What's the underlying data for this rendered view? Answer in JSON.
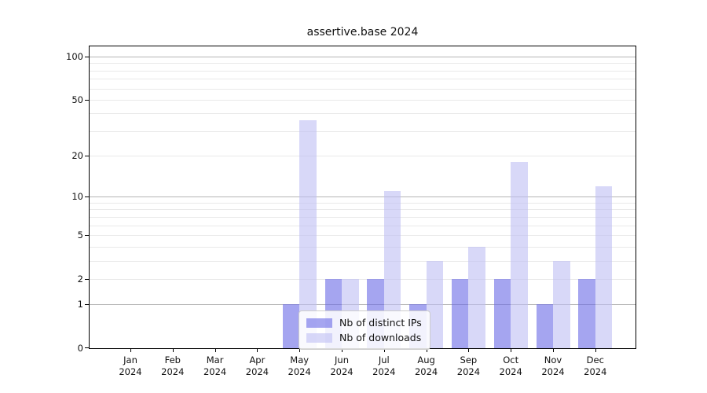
{
  "title": "assertive.base 2024",
  "chart_data": {
    "type": "bar",
    "title": "assertive.base 2024",
    "categories": [
      "Jan",
      "Feb",
      "Mar",
      "Apr",
      "May",
      "Jun",
      "Jul",
      "Aug",
      "Sep",
      "Oct",
      "Nov",
      "Dec"
    ],
    "year_label": "2024",
    "series": [
      {
        "name": "Nb of distinct IPs",
        "color": "#6969e6",
        "values": [
          0,
          0,
          0,
          0,
          1,
          2,
          2,
          1,
          2,
          2,
          1,
          2
        ]
      },
      {
        "name": "Nb of downloads",
        "color": "#bebef3",
        "values": [
          0,
          0,
          0,
          0,
          36,
          2,
          11,
          3,
          4,
          18,
          3,
          12
        ]
      }
    ],
    "bar_alpha": 0.6,
    "yscale": "log1p",
    "ylim": [
      0,
      100
    ],
    "yticks": [
      0,
      1,
      2,
      5,
      10,
      20,
      50,
      100
    ],
    "decade_gridlines": [
      1,
      10,
      100
    ],
    "minor_gridlines": [
      3,
      4,
      6,
      7,
      8,
      9,
      30,
      40,
      60,
      70,
      80,
      90
    ],
    "grid": true,
    "legend_position": "lower center"
  }
}
